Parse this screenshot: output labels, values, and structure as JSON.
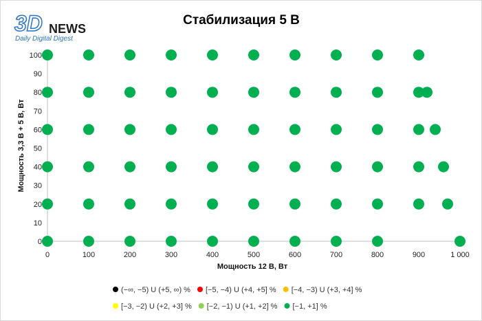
{
  "logo": {
    "brand_3d": "3D",
    "brand_news": "NEWS",
    "tagline": "Daily Digital Digest"
  },
  "chart_data": {
    "type": "scatter",
    "title": "Стабилизация 5 В",
    "xlabel": "Мощность  12 В, Вт",
    "ylabel": "Мощность  3,3 В + 5 В, Вт",
    "xlim": [
      0,
      1000
    ],
    "ylim": [
      0,
      100
    ],
    "x_ticks": [
      0,
      100,
      200,
      300,
      400,
      500,
      600,
      700,
      800,
      900,
      1000
    ],
    "x_tick_labels": [
      "0",
      "100",
      "200",
      "300",
      "400",
      "500",
      "600",
      "700",
      "800",
      "900",
      "1 000"
    ],
    "y_ticks": [
      0,
      10,
      20,
      30,
      40,
      50,
      60,
      70,
      80,
      90,
      100
    ],
    "y_tick_labels": [
      "0",
      "10",
      "20",
      "30",
      "40",
      "50",
      "60",
      "70",
      "80",
      "90",
      "100"
    ],
    "grid": false,
    "legend_position": "bottom",
    "series": [
      {
        "name": "(−∞, −5) U (+5, ∞) %",
        "color": "#000000",
        "points": []
      },
      {
        "name": "[−5, −4) U (+4, +5] %",
        "color": "#ff0000",
        "points": []
      },
      {
        "name": "[−4, −3) U (+3, +4] %",
        "color": "#ffc000",
        "points": []
      },
      {
        "name": "[−3, −2) U (+2, +3] %",
        "color": "#ffff00",
        "points": []
      },
      {
        "name": "[−2, −1) U (+1, +2] %",
        "color": "#92d050",
        "points": []
      },
      {
        "name": "[−1, +1] %",
        "color": "#00b050",
        "points": [
          [
            0,
            0
          ],
          [
            100,
            0
          ],
          [
            200,
            0
          ],
          [
            300,
            0
          ],
          [
            400,
            0
          ],
          [
            500,
            0
          ],
          [
            600,
            0
          ],
          [
            700,
            0
          ],
          [
            800,
            0
          ],
          [
            1000,
            0
          ],
          [
            0,
            20
          ],
          [
            100,
            20
          ],
          [
            200,
            20
          ],
          [
            300,
            20
          ],
          [
            400,
            20
          ],
          [
            500,
            20
          ],
          [
            600,
            20
          ],
          [
            700,
            20
          ],
          [
            800,
            20
          ],
          [
            900,
            20
          ],
          [
            970,
            20
          ],
          [
            0,
            40
          ],
          [
            100,
            40
          ],
          [
            200,
            40
          ],
          [
            300,
            40
          ],
          [
            400,
            40
          ],
          [
            500,
            40
          ],
          [
            600,
            40
          ],
          [
            700,
            40
          ],
          [
            800,
            40
          ],
          [
            900,
            40
          ],
          [
            960,
            40
          ],
          [
            0,
            60
          ],
          [
            100,
            60
          ],
          [
            200,
            60
          ],
          [
            300,
            60
          ],
          [
            400,
            60
          ],
          [
            500,
            60
          ],
          [
            600,
            60
          ],
          [
            700,
            60
          ],
          [
            800,
            60
          ],
          [
            900,
            60
          ],
          [
            940,
            60
          ],
          [
            0,
            80
          ],
          [
            100,
            80
          ],
          [
            200,
            80
          ],
          [
            300,
            80
          ],
          [
            400,
            80
          ],
          [
            500,
            80
          ],
          [
            600,
            80
          ],
          [
            700,
            80
          ],
          [
            800,
            80
          ],
          [
            900,
            80
          ],
          [
            920,
            80
          ],
          [
            0,
            100
          ],
          [
            100,
            100
          ],
          [
            200,
            100
          ],
          [
            300,
            100
          ],
          [
            400,
            100
          ],
          [
            500,
            100
          ],
          [
            600,
            100
          ],
          [
            700,
            100
          ],
          [
            800,
            100
          ],
          [
            900,
            100
          ]
        ]
      }
    ]
  }
}
